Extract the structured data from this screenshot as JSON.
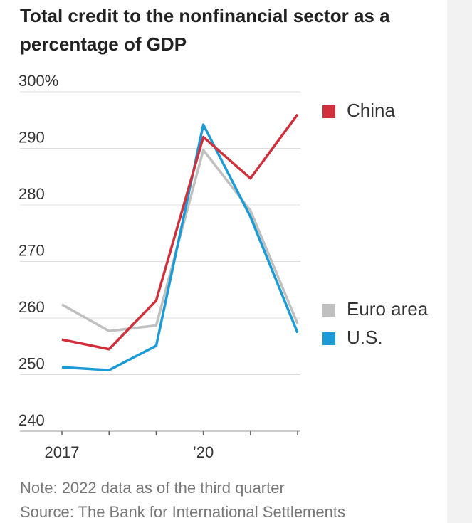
{
  "chart_data": {
    "type": "line",
    "title": "Total credit to the nonfinancial sector as a percentage of GDP",
    "note": "Note: 2022 data as of the third quarter",
    "source": "Source: The Bank for International Settlements",
    "categories": [
      "2017",
      null,
      null,
      "’20",
      null,
      null
    ],
    "series": [
      {
        "name": "China",
        "color": "#d0303c",
        "values": [
          256.2,
          254.5,
          263.1,
          292.0,
          284.7,
          296.0
        ]
      },
      {
        "name": "Euro area",
        "color": "#c0c0c0",
        "values": [
          262.4,
          257.7,
          258.7,
          289.7,
          279.0,
          259.0
        ]
      },
      {
        "name": "U.S.",
        "color": "#1a9bd7",
        "values": [
          251.3,
          250.8,
          255.1,
          294.2,
          277.9,
          257.4
        ]
      }
    ],
    "ylim": [
      240,
      300
    ],
    "yticks": [
      240,
      250,
      260,
      270,
      280,
      290,
      {
        "value": 300,
        "label": "300%"
      }
    ],
    "grid": true
  }
}
